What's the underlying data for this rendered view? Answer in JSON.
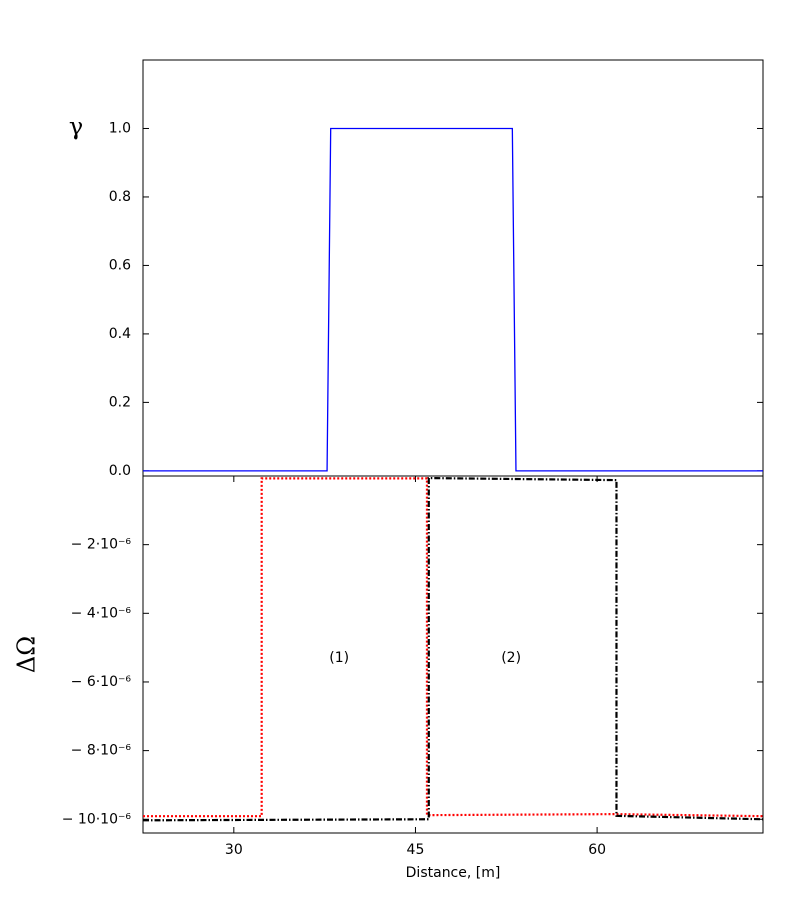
{
  "chart_data": [
    {
      "type": "line",
      "ylabel": "γ",
      "xlim": [
        22.5,
        73.7
      ],
      "ylim": [
        -0.015,
        1.2
      ],
      "yticks": [
        {
          "value": 0,
          "label": "0.0"
        },
        0.2,
        0.4,
        0.6,
        0.8,
        {
          "value": 1,
          "label": "1.0"
        }
      ],
      "series": [
        {
          "color": "#0000ff",
          "dash": "solid",
          "x": [
            22.5,
            37.7,
            38.0,
            53.0,
            53.3,
            73.7
          ],
          "values": [
            0,
            0,
            1,
            1,
            0,
            0
          ]
        }
      ]
    },
    {
      "type": "line",
      "xlabel": "Distance, [m]",
      "ylabel": "ΔΩ",
      "xlim": [
        22.5,
        73.7
      ],
      "ylim": [
        -1.04e-05,
        0
      ],
      "xticks": [
        30,
        45,
        60
      ],
      "yticks": [
        {
          "value": -1e-05,
          "label": "− 10·10⁻⁶"
        },
        {
          "value": -8e-06,
          "label": "− 8·10⁻⁶"
        },
        {
          "value": -6e-06,
          "label": "− 6·10⁻⁶"
        },
        {
          "value": -4e-06,
          "label": "− 4·10⁻⁶"
        },
        {
          "value": -2e-06,
          "label": "− 2·10⁻⁶"
        }
      ],
      "series": [
        {
          "color": "#ff0000",
          "dash": "dotted",
          "x": [
            22.5,
            32.3,
            32.3,
            45.95,
            45.95,
            61.5,
            73.7
          ],
          "values": [
            -9.91e-06,
            -9.91e-06,
            -7e-08,
            -7e-08,
            -9.88e-06,
            -9.85e-06,
            -9.91e-06
          ]
        },
        {
          "color": "#000000",
          "dash": "dashdot",
          "x": [
            22.5,
            46.1,
            46.1,
            61.6,
            61.6,
            73.7
          ],
          "values": [
            -1.003e-05,
            -1e-05,
            -6e-08,
            -1.2e-07,
            -9.9e-06,
            -1e-05
          ]
        }
      ],
      "annotations": [
        {
          "text": "(1)",
          "x": 38.7,
          "y": -5.3e-06
        },
        {
          "text": "(2)",
          "x": 52.9,
          "y": -5.3e-06
        }
      ]
    }
  ]
}
